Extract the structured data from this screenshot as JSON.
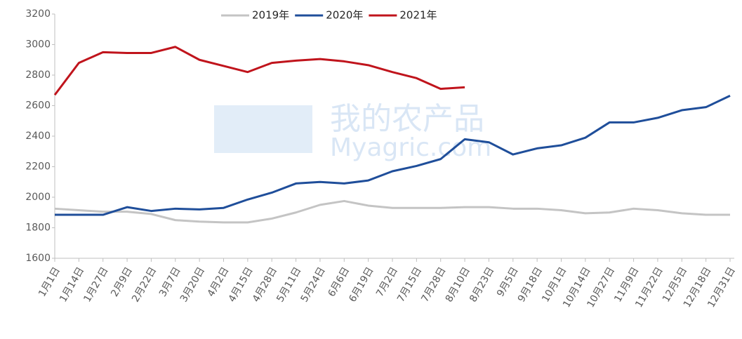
{
  "chart_data": {
    "type": "line",
    "categories": [
      "1月1日",
      "1月14日",
      "1月27日",
      "2月9日",
      "2月22日",
      "3月7日",
      "3月20日",
      "4月2日",
      "4月15日",
      "4月28日",
      "5月11日",
      "5月24日",
      "6月6日",
      "6月19日",
      "7月2日",
      "7月15日",
      "7月28日",
      "8月10日",
      "8月23日",
      "9月5日",
      "9月18日",
      "10月1日",
      "10月14日",
      "10月27日",
      "11月9日",
      "11月22日",
      "12月5日",
      "12月18日",
      "12月31日"
    ],
    "series": [
      {
        "name": "2019年",
        "color": "#c4c4c4",
        "values": [
          1925,
          1915,
          1905,
          1905,
          1890,
          1850,
          1840,
          1835,
          1835,
          1860,
          1900,
          1950,
          1975,
          1945,
          1930,
          1930,
          1930,
          1935,
          1935,
          1925,
          1925,
          1915,
          1895,
          1900,
          1925,
          1915,
          1895,
          1885,
          1885
        ]
      },
      {
        "name": "2020年",
        "color": "#1f4e9a",
        "values": [
          1885,
          1885,
          1885,
          1935,
          1910,
          1925,
          1920,
          1930,
          1985,
          2030,
          2090,
          2100,
          2090,
          2110,
          2170,
          2205,
          2250,
          2380,
          2360,
          2280,
          2320,
          2340,
          2390,
          2490,
          2490,
          2520,
          2570,
          2590,
          2665
        ]
      },
      {
        "name": "2021年",
        "color": "#c0141c",
        "values": [
          2670,
          2880,
          2950,
          2945,
          2945,
          2985,
          2900,
          2860,
          2820,
          2880,
          2895,
          2905,
          2890,
          2865,
          2820,
          2780,
          2710,
          2720,
          null,
          null,
          null,
          null,
          null,
          null,
          null,
          null,
          null,
          null,
          null
        ]
      }
    ],
    "ylim": [
      1600,
      3200
    ],
    "yticks": [
      1600,
      1800,
      2000,
      2200,
      2400,
      2600,
      2800,
      3000,
      3200
    ],
    "grid": false,
    "legend": "top",
    "watermark": [
      "我的农产品",
      "Myagric.com"
    ]
  }
}
